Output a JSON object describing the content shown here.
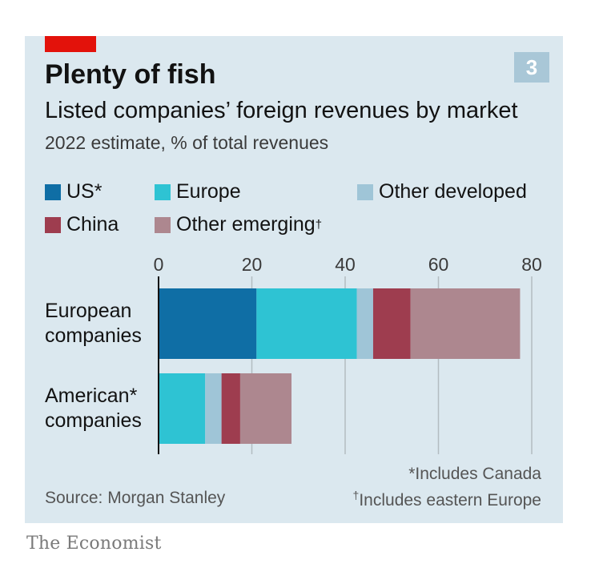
{
  "chart_number": "3",
  "chart_data": {
    "type": "bar",
    "orientation": "horizontal",
    "stacked": true,
    "title": "Plenty of fish",
    "subtitle": "Listed companies’ foreign revenues by market",
    "description": "2022 estimate, % of total revenues",
    "categories": [
      [
        "European",
        "companies"
      ],
      [
        "American*",
        "companies"
      ]
    ],
    "series": [
      {
        "name": "US*",
        "color": "#0f6ea5",
        "values": [
          21,
          0
        ]
      },
      {
        "name": "Europe",
        "color": "#2ec3d3",
        "values": [
          21.5,
          10
        ]
      },
      {
        "name": "Other developed",
        "color": "#9fc5d7",
        "values": [
          3.5,
          3.5
        ]
      },
      {
        "name": "China",
        "color": "#9e3d4f",
        "values": [
          8,
          4
        ]
      },
      {
        "name": "Other emerging",
        "suffix": "†",
        "color": "#ad878f",
        "values": [
          23.5,
          11
        ]
      }
    ],
    "xlim": [
      0,
      80
    ],
    "xticks": [
      0,
      20,
      40,
      60,
      80
    ],
    "grid": true,
    "legend_position": "top"
  },
  "footnotes": {
    "source": "Source: Morgan Stanley",
    "note1": "*Includes Canada",
    "note2_mark": "†",
    "note2": "Includes eastern Europe"
  },
  "brand": "The Economist"
}
